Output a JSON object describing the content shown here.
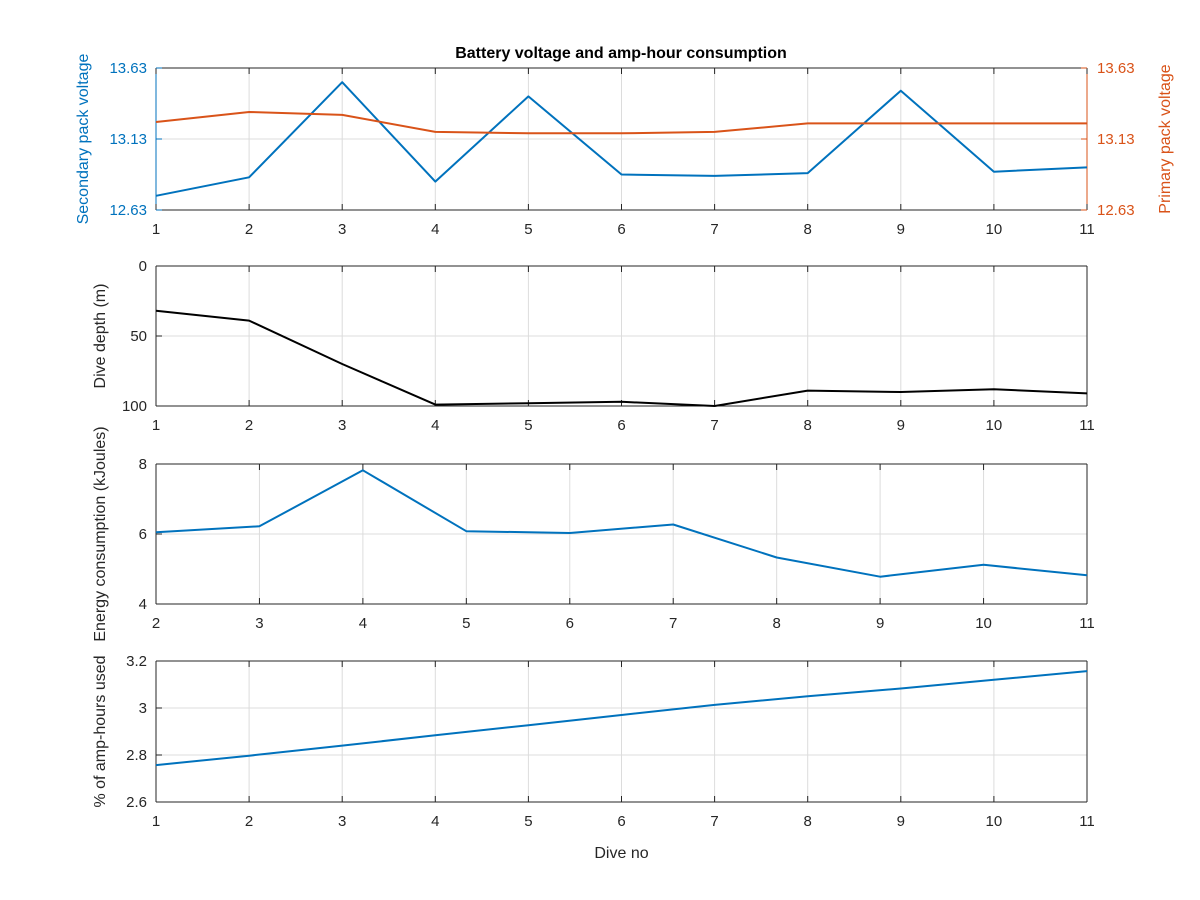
{
  "figure_title": "Battery voltage and amp-hour consumption",
  "colors": {
    "blue": "#0072bd",
    "orange": "#d95319",
    "black": "#000000",
    "grid": "#dcdcdc",
    "axis": "#262626"
  },
  "chart_data": [
    {
      "type": "line",
      "title": "Battery voltage and amp-hour consumption",
      "xlabel": "",
      "ylabel": "Secondary pack voltage",
      "ylabel_right": "Primary pack voltage",
      "x": [
        1,
        2,
        3,
        4,
        5,
        6,
        7,
        8,
        9,
        10,
        11
      ],
      "xlim": [
        1,
        11
      ],
      "xticks": [
        1,
        2,
        3,
        4,
        5,
        6,
        7,
        8,
        9,
        10,
        11
      ],
      "ylim": [
        12.63,
        13.63
      ],
      "yticks": [
        12.63,
        13.13,
        13.63
      ],
      "ylim_right": [
        12.63,
        13.63
      ],
      "yticks_right": [
        12.63,
        13.13,
        13.63
      ],
      "grid": true,
      "series": [
        {
          "axis": "left",
          "color": "blue",
          "values": [
            12.73,
            12.86,
            13.53,
            12.83,
            13.43,
            12.88,
            12.87,
            12.89,
            13.47,
            12.9,
            12.93
          ]
        },
        {
          "axis": "right",
          "color": "orange",
          "values": [
            13.25,
            13.32,
            13.3,
            13.18,
            13.17,
            13.17,
            13.18,
            13.24,
            13.24,
            13.24,
            13.24
          ]
        }
      ]
    },
    {
      "type": "line",
      "title": "",
      "xlabel": "",
      "ylabel": "Dive depth (m)",
      "x": [
        1,
        2,
        3,
        4,
        5,
        6,
        7,
        8,
        9,
        10,
        11
      ],
      "xlim": [
        1,
        11
      ],
      "xticks": [
        1,
        2,
        3,
        4,
        5,
        6,
        7,
        8,
        9,
        10,
        11
      ],
      "ylim": [
        0,
        100
      ],
      "yticks": [
        0,
        50,
        100
      ],
      "yreverse": true,
      "grid": true,
      "series": [
        {
          "color": "black",
          "values": [
            32,
            39,
            70,
            99,
            98,
            97,
            100,
            89,
            90,
            88,
            91
          ]
        }
      ]
    },
    {
      "type": "line",
      "title": "",
      "xlabel": "",
      "ylabel": "Energy consumption (kJoules)",
      "x": [
        2,
        3,
        4,
        5,
        6,
        7,
        8,
        9,
        10,
        11
      ],
      "xlim": [
        2,
        11
      ],
      "xticks": [
        2,
        3,
        4,
        5,
        6,
        7,
        8,
        9,
        10,
        11
      ],
      "ylim": [
        4,
        8
      ],
      "yticks": [
        4,
        6,
        8
      ],
      "grid": true,
      "series": [
        {
          "color": "blue",
          "values": [
            6.05,
            6.22,
            7.82,
            6.08,
            6.03,
            6.27,
            5.33,
            4.78,
            5.12,
            4.82
          ]
        }
      ]
    },
    {
      "type": "line",
      "title": "",
      "xlabel": "Dive no",
      "ylabel": "% of amp-hours used",
      "x": [
        1,
        2,
        3,
        4,
        5,
        6,
        7,
        8,
        9,
        10,
        11
      ],
      "xlim": [
        1,
        11
      ],
      "xticks": [
        1,
        2,
        3,
        4,
        5,
        6,
        7,
        8,
        9,
        10,
        11
      ],
      "ylim": [
        2.6,
        3.2
      ],
      "yticks": [
        2.6,
        2.8,
        3,
        3.2
      ],
      "grid": true,
      "series": [
        {
          "color": "blue",
          "values": [
            2.757,
            2.797,
            2.84,
            2.884,
            2.927,
            2.97,
            3.013,
            3.05,
            3.083,
            3.12,
            3.157
          ]
        }
      ]
    }
  ]
}
